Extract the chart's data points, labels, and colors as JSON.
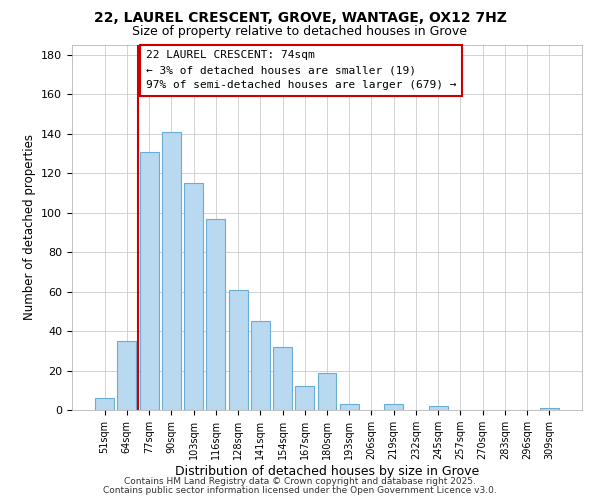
{
  "title": "22, LAUREL CRESCENT, GROVE, WANTAGE, OX12 7HZ",
  "subtitle": "Size of property relative to detached houses in Grove",
  "xlabel": "Distribution of detached houses by size in Grove",
  "ylabel": "Number of detached properties",
  "bar_labels": [
    "51sqm",
    "64sqm",
    "77sqm",
    "90sqm",
    "103sqm",
    "116sqm",
    "128sqm",
    "141sqm",
    "154sqm",
    "167sqm",
    "180sqm",
    "193sqm",
    "206sqm",
    "219sqm",
    "232sqm",
    "245sqm",
    "257sqm",
    "270sqm",
    "283sqm",
    "296sqm",
    "309sqm"
  ],
  "bar_values": [
    6,
    35,
    131,
    141,
    115,
    97,
    61,
    45,
    32,
    12,
    19,
    3,
    0,
    3,
    0,
    2,
    0,
    0,
    0,
    0,
    1
  ],
  "bar_color": "#b8d9f0",
  "bar_edge_color": "#6aaed6",
  "vline_color": "#cc0000",
  "vline_pos": 1.5,
  "annotation_text": "22 LAUREL CRESCENT: 74sqm\n← 3% of detached houses are smaller (19)\n97% of semi-detached houses are larger (679) →",
  "ylim": [
    0,
    185
  ],
  "yticks": [
    0,
    20,
    40,
    60,
    80,
    100,
    120,
    140,
    160,
    180
  ],
  "footer1": "Contains HM Land Registry data © Crown copyright and database right 2025.",
  "footer2": "Contains public sector information licensed under the Open Government Licence v3.0.",
  "title_fontsize": 10,
  "subtitle_fontsize": 9,
  "ylabel_fontsize": 8.5,
  "xlabel_fontsize": 9
}
